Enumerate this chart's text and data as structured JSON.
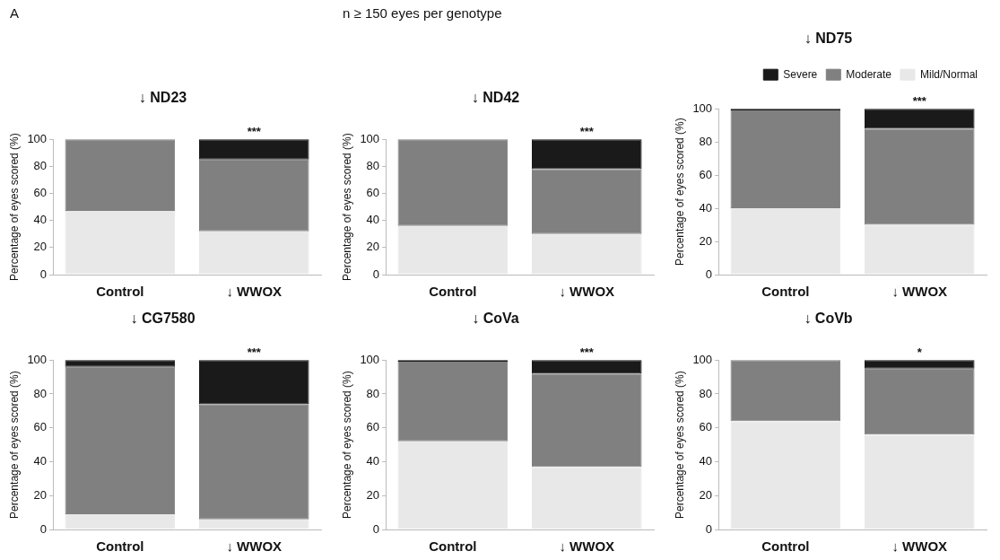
{
  "chart_data": [
    {
      "type": "bar",
      "title": "↓ ND23",
      "ylabel": "Percentage of eyes scored (%)",
      "categories": [
        "Control",
        "↓ WWOX"
      ],
      "stacked": true,
      "ylim": [
        0,
        100
      ],
      "yticks": [
        0,
        20,
        40,
        60,
        80,
        100
      ],
      "grid": false,
      "annotations": [
        "A",
        {
          "text": "***",
          "x": "↓ WWOX",
          "y": 100
        }
      ],
      "series": [
        {
          "color": "#e8e8e8",
          "values": [
            47,
            32
          ]
        },
        {
          "color": "#808080",
          "values": [
            53,
            53
          ]
        },
        {
          "color": "#1a1a1a",
          "values": [
            0,
            15
          ]
        }
      ]
    },
    {
      "type": "bar",
      "title": "↓ ND42",
      "ylabel": "Percentage of eyes scored (%)",
      "categories": [
        "Control",
        "↓ WWOX"
      ],
      "stacked": true,
      "ylim": [
        0,
        100
      ],
      "yticks": [
        0,
        20,
        40,
        60,
        80,
        100
      ],
      "grid": false,
      "annotations": [
        "n ≥ 150 eyes per genotype",
        {
          "text": "***",
          "x": "↓ WWOX",
          "y": 100
        }
      ],
      "series": [
        {
          "color": "#e8e8e8",
          "values": [
            36,
            30
          ]
        },
        {
          "color": "#808080",
          "values": [
            64,
            48
          ]
        },
        {
          "color": "#1a1a1a",
          "values": [
            0,
            22
          ]
        }
      ]
    },
    {
      "type": "bar",
      "title": "↓ ND75",
      "ylabel": "Percentage of eyes scored (%)",
      "categories": [
        "Control",
        "↓ WWOX"
      ],
      "stacked": true,
      "ylim": [
        0,
        100
      ],
      "yticks": [
        0,
        20,
        40,
        60,
        80,
        100
      ],
      "grid": false,
      "legend": "top right",
      "annotations": [
        {
          "text": "***",
          "x": "↓ WWOX",
          "y": 100
        }
      ],
      "series": [
        {
          "name": "Mild/Normal",
          "color": "#e8e8e8",
          "values": [
            40,
            30
          ]
        },
        {
          "name": "Moderate",
          "color": "#808080",
          "values": [
            59,
            58
          ]
        },
        {
          "name": "Severe",
          "color": "#1a1a1a",
          "values": [
            1,
            12
          ]
        }
      ]
    },
    {
      "type": "bar",
      "title": "↓ CG7580",
      "ylabel": "Percentage of eyes scored (%)",
      "categories": [
        "Control",
        "↓ WWOX"
      ],
      "stacked": true,
      "ylim": [
        0,
        100
      ],
      "yticks": [
        0,
        20,
        40,
        60,
        80,
        100
      ],
      "grid": false,
      "annotations": [
        {
          "text": "***",
          "x": "↓ WWOX",
          "y": 100
        }
      ],
      "series": [
        {
          "color": "#e8e8e8",
          "values": [
            9,
            6
          ]
        },
        {
          "color": "#808080",
          "values": [
            87,
            68
          ]
        },
        {
          "color": "#1a1a1a",
          "values": [
            4,
            26
          ]
        }
      ]
    },
    {
      "type": "bar",
      "title": "↓ CoVa",
      "ylabel": "Percentage of eyes scored (%)",
      "categories": [
        "Control",
        "↓ WWOX"
      ],
      "stacked": true,
      "ylim": [
        0,
        100
      ],
      "yticks": [
        0,
        20,
        40,
        60,
        80,
        100
      ],
      "grid": false,
      "annotations": [
        {
          "text": "***",
          "x": "↓ WWOX",
          "y": 100
        }
      ],
      "series": [
        {
          "color": "#e8e8e8",
          "values": [
            52,
            37
          ]
        },
        {
          "color": "#808080",
          "values": [
            47,
            55
          ]
        },
        {
          "color": "#1a1a1a",
          "values": [
            1,
            8
          ]
        }
      ]
    },
    {
      "type": "bar",
      "title": "↓ CoVb",
      "ylabel": "Percentage of eyes scored (%)",
      "categories": [
        "Control",
        "↓ WWOX"
      ],
      "stacked": true,
      "ylim": [
        0,
        100
      ],
      "yticks": [
        0,
        20,
        40,
        60,
        80,
        100
      ],
      "grid": false,
      "annotations": [
        {
          "text": "*",
          "x": "↓ WWOX",
          "y": 100
        }
      ],
      "series": [
        {
          "color": "#e8e8e8",
          "values": [
            64,
            56
          ]
        },
        {
          "color": "#808080",
          "values": [
            36,
            39
          ]
        },
        {
          "color": "#1a1a1a",
          "values": [
            0,
            5
          ]
        }
      ]
    }
  ]
}
